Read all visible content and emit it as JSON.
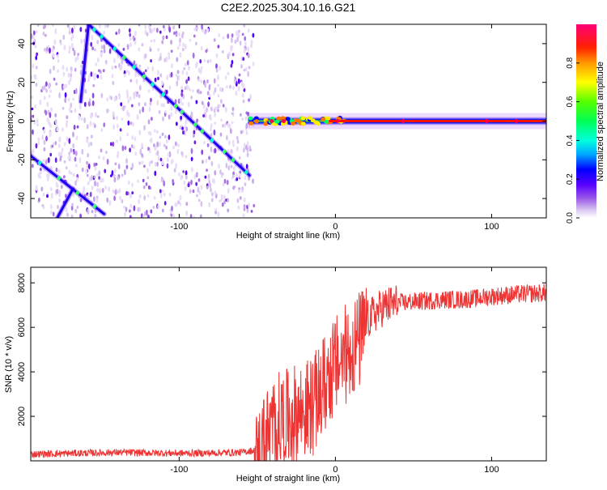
{
  "title": "C2E2.2025.304.10.16.G21",
  "chart_data": [
    {
      "type": "heatmap",
      "name": "spectrogram",
      "xlabel": "Height of straight line (km)",
      "ylabel": "Frequency (Hz)",
      "xlim": [
        -195,
        135
      ],
      "ylim": [
        -50,
        50
      ],
      "xticks": [
        -100,
        0,
        100
      ],
      "xtick_labels": [
        "-100",
        "0",
        "100"
      ],
      "yticks": [
        -40,
        -20,
        0,
        20,
        40
      ],
      "ytick_labels": [
        "-40",
        "-20",
        "0",
        "20",
        "40"
      ],
      "colorbar": {
        "label": "Normalized spectral amplitude",
        "range": [
          0,
          1
        ],
        "ticks": [
          0.0,
          0.2,
          0.4,
          0.6,
          0.8
        ],
        "tick_labels": [
          "0.0",
          "0.2",
          "0.4",
          "0.6",
          "0.8"
        ]
      },
      "features": [
        {
          "label": "Doppler trace A",
          "x": [
            -163,
            -158
          ],
          "y": [
            10,
            50
          ]
        },
        {
          "label": "Doppler trace B",
          "x": [
            -158,
            -55
          ],
          "y": [
            50,
            -28
          ]
        },
        {
          "label": "Doppler trace C",
          "x": [
            -195,
            -148
          ],
          "y": [
            -18,
            -48
          ]
        },
        {
          "label": "Doppler trace D",
          "x": [
            -168,
            -178
          ],
          "y": [
            -35,
            -50
          ]
        },
        {
          "label": "Direct signal",
          "x": [
            -56,
            135
          ],
          "y": [
            0,
            0
          ]
        }
      ],
      "noise_region_x": [
        -195,
        -52
      ]
    },
    {
      "type": "line",
      "name": "snr",
      "xlabel": "Height of straight line (km)",
      "ylabel": "SNR (10 * v/v)",
      "xlim": [
        -195,
        135
      ],
      "ylim": [
        0,
        8700
      ],
      "xticks": [
        -100,
        0,
        100
      ],
      "xtick_labels": [
        "-100",
        "0",
        "100"
      ],
      "yticks": [
        2000,
        4000,
        6000,
        8000
      ],
      "ytick_labels": [
        "2000",
        "4000",
        "6000",
        "8000"
      ],
      "color": "#ee3333",
      "series": [
        {
          "name": "SNR",
          "x": [
            -195,
            -180,
            -160,
            -140,
            -120,
            -100,
            -80,
            -60,
            -50,
            -45,
            -40,
            -35,
            -30,
            -25,
            -20,
            -15,
            -10,
            -5,
            0,
            5,
            10,
            15,
            20,
            30,
            40,
            50,
            60,
            70,
            80,
            90,
            100,
            110,
            120,
            135
          ],
          "y": [
            300,
            320,
            350,
            380,
            360,
            340,
            350,
            380,
            500,
            1400,
            1900,
            2300,
            2300,
            2600,
            2700,
            2900,
            3400,
            4200,
            4700,
            5100,
            5500,
            5800,
            6300,
            6900,
            7100,
            7150,
            7200,
            7250,
            7250,
            7300,
            7400,
            7450,
            7500,
            7550
          ]
        }
      ]
    }
  ]
}
